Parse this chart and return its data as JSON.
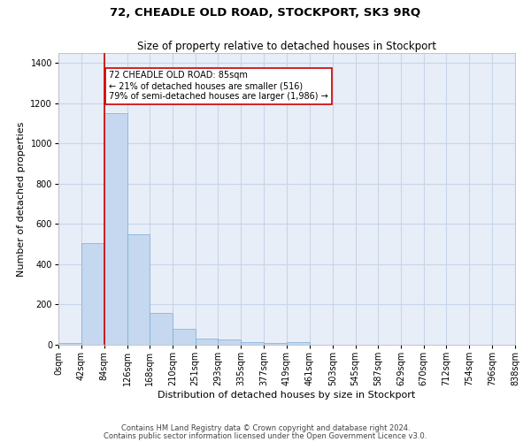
{
  "title": "72, CHEADLE OLD ROAD, STOCKPORT, SK3 9RQ",
  "subtitle": "Size of property relative to detached houses in Stockport",
  "xlabel": "Distribution of detached houses by size in Stockport",
  "ylabel": "Number of detached properties",
  "bar_color": "#c5d8ef",
  "bar_edge_color": "#7aaed4",
  "background_color": "#ffffff",
  "plot_bg_color": "#e8eef8",
  "grid_color": "#c8d4e8",
  "annotation_line_color": "#cc0000",
  "bins": [
    0,
    42,
    84,
    126,
    168,
    210,
    251,
    293,
    335,
    377,
    419,
    461,
    503,
    545,
    587,
    629,
    670,
    712,
    754,
    796,
    838
  ],
  "bin_labels": [
    "0sqm",
    "42sqm",
    "84sqm",
    "126sqm",
    "168sqm",
    "210sqm",
    "251sqm",
    "293sqm",
    "335sqm",
    "377sqm",
    "419sqm",
    "461sqm",
    "503sqm",
    "545sqm",
    "587sqm",
    "629sqm",
    "670sqm",
    "712sqm",
    "754sqm",
    "796sqm",
    "838sqm"
  ],
  "values": [
    10,
    505,
    1150,
    548,
    160,
    80,
    30,
    26,
    14,
    8,
    14,
    0,
    0,
    0,
    0,
    0,
    0,
    0,
    0,
    0
  ],
  "ylim": [
    0,
    1450
  ],
  "yticks": [
    0,
    200,
    400,
    600,
    800,
    1000,
    1200,
    1400
  ],
  "property_line_x": 85,
  "annotation_box_text": "72 CHEADLE OLD ROAD: 85sqm\n← 21% of detached houses are smaller (516)\n79% of semi-detached houses are larger (1,986) →",
  "footer_line1": "Contains HM Land Registry data © Crown copyright and database right 2024.",
  "footer_line2": "Contains public sector information licensed under the Open Government Licence v3.0.",
  "title_fontsize": 9.5,
  "subtitle_fontsize": 8.5,
  "ylabel_fontsize": 8,
  "xlabel_fontsize": 8,
  "tick_fontsize": 7,
  "annot_fontsize": 7,
  "footer_fontsize": 6
}
